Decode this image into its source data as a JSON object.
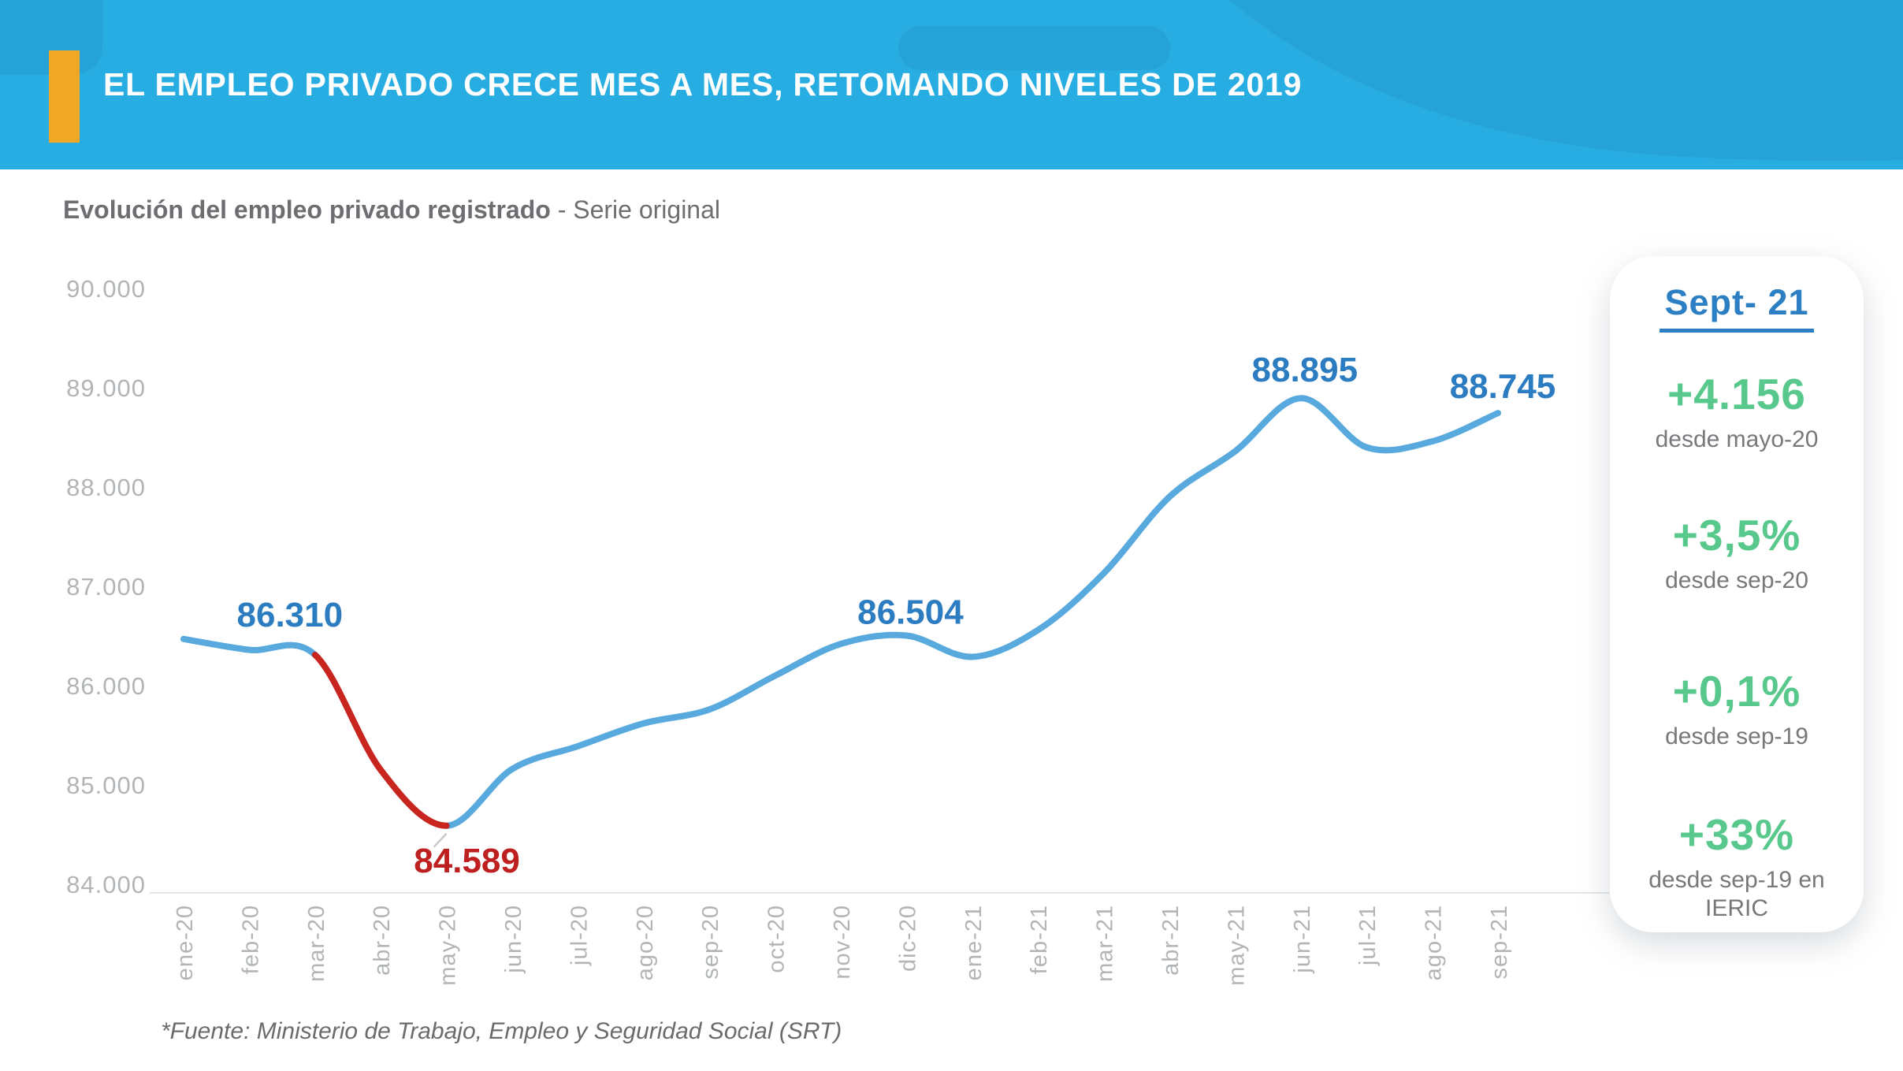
{
  "header": {
    "title": "EL EMPLEO PRIVADO CRECE MES A MES, RETOMANDO NIVELES DE 2019",
    "bg_color": "#28ADE3",
    "deco_color": "#25A3D8",
    "accent_color": "#F0A724"
  },
  "subtitle": {
    "bold": "Evolución del empleo privado registrado",
    "regular": " - Serie original"
  },
  "chart_data": {
    "type": "line",
    "title": "Evolución del empleo privado registrado - Serie original",
    "categories": [
      "ene-20",
      "feb-20",
      "mar-20",
      "abr-20",
      "may-20",
      "jun-20",
      "jul-20",
      "ago-20",
      "sep-20",
      "oct-20",
      "nov-20",
      "dic-20",
      "ene-21",
      "feb-21",
      "mar-21",
      "abr-21",
      "may-21",
      "jun-21",
      "jul-21",
      "ago-21",
      "sep-21"
    ],
    "series": [
      {
        "name": "Empleo privado registrado (SRT) - Serie original",
        "values": [
          86470,
          86360,
          86310,
          85150,
          84589,
          85160,
          85390,
          85620,
          85760,
          86100,
          86420,
          86504,
          86290,
          86560,
          87130,
          87900,
          88360,
          88895,
          88400,
          88460,
          88745
        ]
      }
    ],
    "ylim": [
      84000,
      90000
    ],
    "ytick_labels": [
      "90.000",
      "89.000",
      "88.000",
      "87.000",
      "86.000",
      "85.000",
      "84.000"
    ],
    "grid": false,
    "legend": false,
    "line_color": "#58A9DD",
    "red_color": "#C8251F",
    "axis_label_color": "#B2B5B7",
    "red_segment": {
      "from": "mar-20",
      "to": "may-20"
    },
    "point_labels": [
      {
        "category": "mar-20",
        "text": "86.310",
        "color": "#2B7CC0"
      },
      {
        "category": "may-20",
        "text": "84.589",
        "color": "#BE1F1F"
      },
      {
        "category": "dic-20",
        "text": "86.504",
        "color": "#2B7CC0"
      },
      {
        "category": "jun-21",
        "text": "88.895",
        "color": "#2B7CC0"
      },
      {
        "category": "sep-21",
        "text": "88.745",
        "color": "#2B7CC0"
      }
    ]
  },
  "stat_card": {
    "title": "Sept- 21",
    "title_color": "#2B7FC2",
    "value_color": "#58C88C",
    "stats": [
      {
        "value": "+4.156",
        "caption": "desde mayo-20"
      },
      {
        "value": "+3,5%",
        "caption": "desde sep-20"
      },
      {
        "value": "+0,1%",
        "caption": "desde sep-19"
      },
      {
        "value": "+33%",
        "caption": "desde sep-19 en IERIC"
      }
    ]
  },
  "footer": {
    "source": "*Fuente: Ministerio de Trabajo, Empleo y Seguridad Social (SRT)"
  }
}
